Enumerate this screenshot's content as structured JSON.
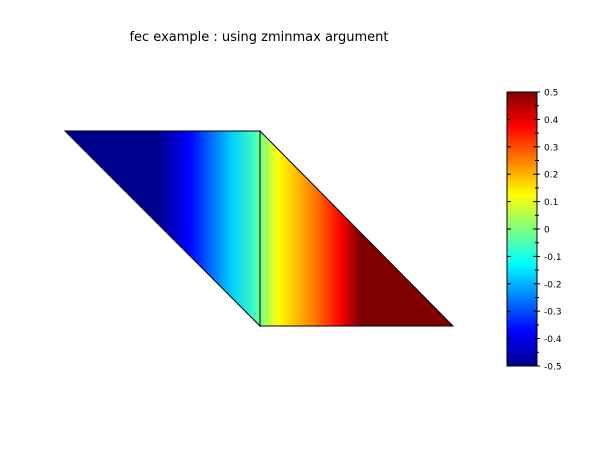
{
  "chart_data": {
    "type": "heatmap",
    "title": "fec example : using zminmax argument",
    "xlabel": "",
    "ylabel": "",
    "zlim": [
      -0.5,
      0.5
    ],
    "colormap": "jet",
    "mesh": {
      "nodes": [
        {
          "x": -1,
          "y": 1
        },
        {
          "x": 0,
          "y": 1
        },
        {
          "x": 0,
          "y": 0
        },
        {
          "x": 1,
          "y": 0
        }
      ],
      "triangles": [
        [
          0,
          1,
          2
        ],
        [
          1,
          2,
          3
        ]
      ]
    },
    "field_description": "z increases with x across the mesh",
    "colorbar": {
      "ticks": [
        0.5,
        0.4,
        0.3,
        0.2,
        0.1,
        0,
        -0.1,
        -0.2,
        -0.3,
        -0.4,
        -0.5
      ],
      "tick_labels": [
        "0.5",
        "0.4",
        "0.3",
        "0.2",
        "0.1",
        "0",
        "-0.1",
        "-0.2",
        "-0.3",
        "-0.4",
        "-0.5"
      ]
    }
  }
}
